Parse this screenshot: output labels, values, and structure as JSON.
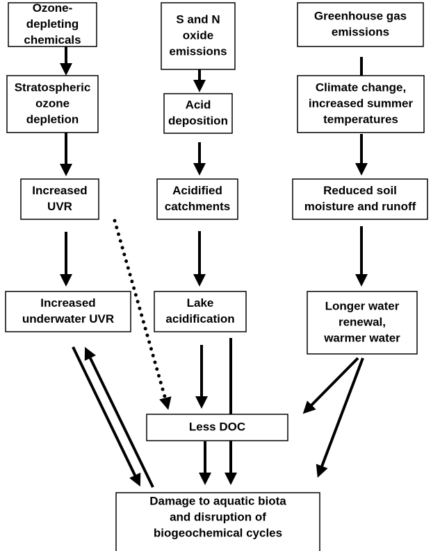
{
  "nodes": [
    {
      "lines": [
        "Ozone-",
        "depleting",
        "chemicals"
      ]
    },
    {
      "lines": [
        "Stratospheric",
        "ozone",
        "depletion"
      ]
    },
    {
      "lines": [
        "Increased",
        "UVR"
      ]
    },
    {
      "lines": [
        "Increased",
        "underwater UVR"
      ]
    },
    {
      "lines": [
        "S and N",
        "oxide",
        "emissions"
      ]
    },
    {
      "lines": [
        "Acid",
        "deposition"
      ]
    },
    {
      "lines": [
        "Acidified",
        "catchments"
      ]
    },
    {
      "lines": [
        "Lake",
        "acidification"
      ]
    },
    {
      "lines": [
        "Greenhouse gas",
        "emissions"
      ]
    },
    {
      "lines": [
        "Climate change,",
        "increased summer",
        "temperatures"
      ]
    },
    {
      "lines": [
        "Reduced soil",
        "moisture and runoff"
      ]
    },
    {
      "lines": [
        "Longer water",
        "renewal,",
        "warmer water"
      ]
    },
    {
      "lines": [
        "Less DOC"
      ]
    },
    {
      "lines": [
        "Damage to aquatic biota",
        "and disruption of",
        "biogeochemical cycles"
      ]
    }
  ]
}
